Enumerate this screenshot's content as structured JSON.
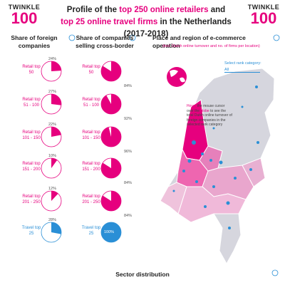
{
  "header": {
    "logo_small": "TWINKLE",
    "logo_big": "100",
    "title": [
      {
        "text": "Profile of the ",
        "highlight": false
      },
      {
        "text": "top 250 online retailers",
        "highlight": true
      },
      {
        "text": " and",
        "highlight": false
      },
      {
        "text": "top 25 online travel firms",
        "highlight": true
      },
      {
        "text": " in the Netherlands (2017-2018)",
        "highlight": false
      }
    ]
  },
  "foreign": {
    "title": "Share of foreign companies",
    "items": [
      {
        "label": [
          "Retail top",
          "50"
        ],
        "value": 24,
        "value_label": "24%"
      },
      {
        "label": [
          "Retail top",
          "51 - 100"
        ],
        "value": 27,
        "value_label": "27%"
      },
      {
        "label": [
          "Retail top",
          "101 - 150"
        ],
        "value": 22,
        "value_label": "22%"
      },
      {
        "label": [
          "Retail top",
          "151 - 200"
        ],
        "value": 10,
        "value_label": "10%"
      },
      {
        "label": [
          "Retail top",
          "201 - 250"
        ],
        "value": 12,
        "value_label": "12%"
      },
      {
        "label": [
          "Travel top",
          "25"
        ],
        "value": 28,
        "value_label": "28%"
      }
    ]
  },
  "cross_border": {
    "title": "Share of companies selling cross-border",
    "items": [
      {
        "label": [
          "Retail top",
          "50"
        ],
        "value": 84,
        "value_label": "84%"
      },
      {
        "label": [
          "Retail top",
          "51 - 100"
        ],
        "value": 92,
        "value_label": "92%"
      },
      {
        "label": [
          "Retail top",
          "101 - 150"
        ],
        "value": 96,
        "value_label": "96%"
      },
      {
        "label": [
          "Retail top",
          "151 - 200"
        ],
        "value": 84,
        "value_label": "84%"
      },
      {
        "label": [
          "Retail top",
          "201 - 250"
        ],
        "value": 84,
        "value_label": "84%"
      },
      {
        "label": [
          "Travel top",
          "25"
        ],
        "value": 100,
        "value_label": "100%"
      }
    ]
  },
  "map": {
    "title": "Place and region of e-commerce operation",
    "subtitle": "(incl. Dutch online turnover and no. of firms per location)",
    "select_label": "Select rank category:",
    "select_value": "All",
    "hover_note": [
      "Hover",
      " the mouse cursor over the ",
      "globe",
      " to see the total Dutch online turnover of foreign companies in the selected rank category"
    ]
  },
  "footer": {
    "title": "Sector distribution"
  }
}
